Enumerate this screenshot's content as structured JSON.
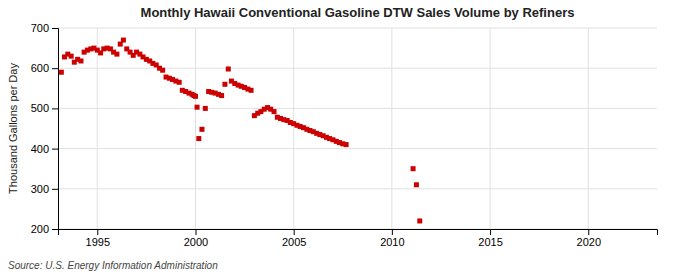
{
  "chart_data": {
    "type": "scatter",
    "title": "Monthly Hawaii Conventional Gasoline DTW Sales Volume by Refiners",
    "ylabel": "Thousand Gallons per Day",
    "annotations": [
      "Source: U.S. Energy Information Administration"
    ],
    "color": "#cc0000",
    "marker": "square",
    "grid": true,
    "xlim": [
      1993.0,
      2023.5
    ],
    "xticks": [
      1995,
      2000,
      2005,
      2010,
      2015,
      2020
    ],
    "ylim": [
      200,
      700
    ],
    "yticks": [
      200,
      300,
      400,
      500,
      600,
      700
    ],
    "x": [
      1993.17,
      1993.33,
      1993.5,
      1993.67,
      1993.83,
      1994.0,
      1994.17,
      1994.33,
      1994.5,
      1994.67,
      1994.83,
      1995.0,
      1995.17,
      1995.33,
      1995.5,
      1995.67,
      1995.83,
      1996.0,
      1996.17,
      1996.33,
      1996.5,
      1996.67,
      1996.83,
      1997.0,
      1997.17,
      1997.33,
      1997.5,
      1997.67,
      1997.83,
      1998.0,
      1998.17,
      1998.33,
      1998.5,
      1998.67,
      1998.83,
      1999.0,
      1999.17,
      1999.33,
      1999.5,
      1999.67,
      1999.83,
      1999.92,
      2000.0,
      2000.08,
      2000.17,
      2000.33,
      2000.5,
      2000.67,
      2000.83,
      2001.0,
      2001.17,
      2001.33,
      2001.5,
      2001.67,
      2001.83,
      2002.0,
      2002.17,
      2002.33,
      2002.5,
      2002.67,
      2002.83,
      2003.0,
      2003.17,
      2003.33,
      2003.5,
      2003.67,
      2003.83,
      2004.0,
      2004.17,
      2004.33,
      2004.5,
      2004.67,
      2004.83,
      2005.0,
      2005.17,
      2005.33,
      2005.5,
      2005.67,
      2005.83,
      2006.0,
      2006.17,
      2006.33,
      2006.5,
      2006.67,
      2006.83,
      2007.0,
      2007.17,
      2007.33,
      2007.5,
      2007.67,
      2011.08,
      2011.25,
      2011.42
    ],
    "values": [
      590,
      628,
      635,
      630,
      615,
      622,
      618,
      640,
      645,
      648,
      650,
      645,
      638,
      648,
      650,
      648,
      640,
      635,
      660,
      670,
      648,
      640,
      632,
      640,
      635,
      628,
      622,
      618,
      612,
      608,
      600,
      595,
      578,
      575,
      572,
      568,
      565,
      545,
      542,
      538,
      535,
      532,
      530,
      503,
      425,
      448,
      500,
      542,
      540,
      538,
      535,
      532,
      560,
      598,
      568,
      562,
      558,
      555,
      552,
      548,
      545,
      482,
      488,
      492,
      498,
      502,
      498,
      492,
      478,
      475,
      472,
      470,
      465,
      462,
      458,
      455,
      452,
      448,
      445,
      442,
      438,
      435,
      432,
      428,
      425,
      422,
      418,
      415,
      412,
      410,
      350,
      310,
      220
    ]
  }
}
